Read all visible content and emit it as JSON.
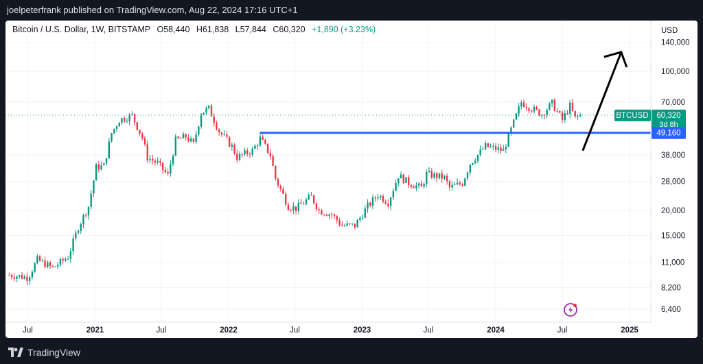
{
  "header": {
    "publisher_line": "joelpeterfrank published on TradingView.com, Aug 22, 2024 17:16 UTC+1"
  },
  "legend": {
    "symbol_line": "Bitcoin / U.S. Dollar, 1W, BITSTAMP",
    "open": "O58,440",
    "high": "H61,838",
    "low": "L57,844",
    "close": "C60,320",
    "change": "+1,890 (+3.23%)"
  },
  "price_axis": {
    "currency": "USD",
    "ticks": [
      "140,000",
      "100,000",
      "70,000",
      "38,000",
      "28,000",
      "20,000",
      "15,000",
      "11,000",
      "8,200",
      "6,400"
    ]
  },
  "time_axis": {
    "ticks": [
      "Jul",
      "2021",
      "Jul",
      "2022",
      "Jul",
      "2023",
      "Jul",
      "2024",
      "Jul",
      "2025"
    ]
  },
  "price_labels": {
    "symbol": "BTCUSD",
    "last_price": "60,320",
    "countdown": "3d 8h",
    "line_price": "49,160"
  },
  "footer": {
    "brand": "TradingView"
  },
  "colors": {
    "up": "#089981",
    "down": "#f23645",
    "line": "#2962ff",
    "arrow": "#000000",
    "last_price_bg": "#089981",
    "line_label_bg": "#2962ff"
  },
  "chart_data": {
    "type": "candlestick",
    "scale": "log",
    "timeframe": "1W",
    "x_range": [
      "2020-05-01",
      "2025-02-28"
    ],
    "ylim": [
      5500,
      180000
    ],
    "path": [
      [
        "2020-05-11",
        9500
      ],
      [
        "2020-06-01",
        9400
      ],
      [
        "2020-07-01",
        9200
      ],
      [
        "2020-07-27",
        11300
      ],
      [
        "2020-09-07",
        10300
      ],
      [
        "2020-10-19",
        11700
      ],
      [
        "2020-11-16",
        16500
      ],
      [
        "2020-12-14",
        21000
      ],
      [
        "2021-01-04",
        33000
      ],
      [
        "2021-01-25",
        33500
      ],
      [
        "2021-02-15",
        49000
      ],
      [
        "2021-03-08",
        57000
      ],
      [
        "2021-04-12",
        60000
      ],
      [
        "2021-05-10",
        46500
      ],
      [
        "2021-05-24",
        37000
      ],
      [
        "2021-06-21",
        34500
      ],
      [
        "2021-07-19",
        30000
      ],
      [
        "2021-08-09",
        45000
      ],
      [
        "2021-09-06",
        47000
      ],
      [
        "2021-09-27",
        43000
      ],
      [
        "2021-10-18",
        62000
      ],
      [
        "2021-11-08",
        65000
      ],
      [
        "2021-12-06",
        50000
      ],
      [
        "2022-01-10",
        42000
      ],
      [
        "2022-01-24",
        37000
      ],
      [
        "2022-03-07",
        40000
      ],
      [
        "2022-03-28",
        46000
      ],
      [
        "2022-04-25",
        38000
      ],
      [
        "2022-05-09",
        29000
      ],
      [
        "2022-06-13",
        21000
      ],
      [
        "2022-07-04",
        20500
      ],
      [
        "2022-08-15",
        23500
      ],
      [
        "2022-09-05",
        20000
      ],
      [
        "2022-10-10",
        19100
      ],
      [
        "2022-11-07",
        16800
      ],
      [
        "2022-12-12",
        16800
      ],
      [
        "2023-01-16",
        21000
      ],
      [
        "2023-02-13",
        24000
      ],
      [
        "2023-03-13",
        22000
      ],
      [
        "2023-04-10",
        30000
      ],
      [
        "2023-05-08",
        27500
      ],
      [
        "2023-06-12",
        26000
      ],
      [
        "2023-06-26",
        30500
      ],
      [
        "2023-08-14",
        29200
      ],
      [
        "2023-08-28",
        26000
      ],
      [
        "2023-10-02",
        27500
      ],
      [
        "2023-10-23",
        34500
      ],
      [
        "2023-12-04",
        42000
      ],
      [
        "2024-01-22",
        40000
      ],
      [
        "2024-02-12",
        51000
      ],
      [
        "2024-03-11",
        70000
      ],
      [
        "2024-04-15",
        64000
      ],
      [
        "2024-05-06",
        61000
      ],
      [
        "2024-06-03",
        69000
      ],
      [
        "2024-07-01",
        57000
      ],
      [
        "2024-07-22",
        67000
      ],
      [
        "2024-08-05",
        58000
      ],
      [
        "2024-08-19",
        60320
      ]
    ],
    "last_price": 60320,
    "horizontal_line": {
      "price": 49160,
      "from": "2022-03-28"
    },
    "arrow": {
      "from": [
        "2024-08-26",
        40000
      ],
      "to": [
        "2024-12-09",
        125000
      ]
    }
  }
}
